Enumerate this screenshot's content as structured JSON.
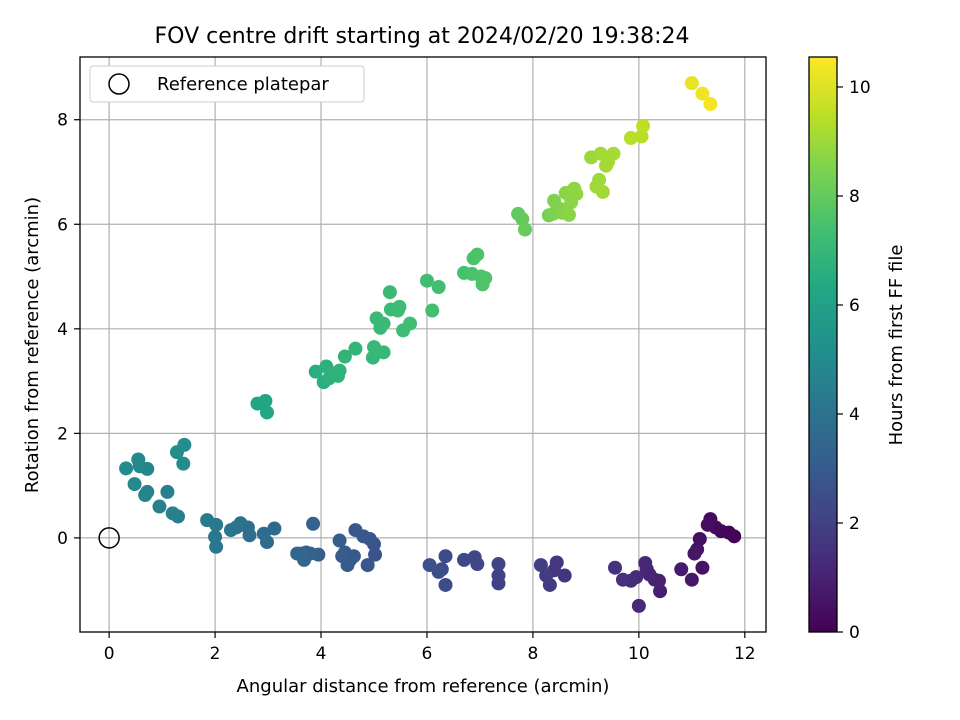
{
  "chart_data": {
    "type": "scatter",
    "title": "FOV centre drift starting at 2024/02/20 19:38:24",
    "xlabel": "Angular distance from reference (arcmin)",
    "ylabel": "Rotation from reference (arcmin)",
    "xlim": [
      -0.55,
      12.4
    ],
    "ylim": [
      -1.8,
      9.2
    ],
    "xticks": [
      0,
      2,
      4,
      6,
      8,
      10,
      12
    ],
    "yticks": [
      0,
      2,
      4,
      6,
      8
    ],
    "grid": true,
    "legend": {
      "placement": "top-left",
      "entries": [
        "Reference platepar"
      ]
    },
    "reference_point": {
      "x": 0,
      "y": 0
    },
    "colorbar": {
      "label": "Hours from first FF file",
      "colormap": "viridis",
      "range": [
        0,
        10.55
      ],
      "ticks": [
        0,
        2,
        4,
        6,
        8,
        10
      ]
    },
    "points": [
      {
        "x": 11.8,
        "y": 0.03,
        "t": 0.02
      },
      {
        "x": 11.7,
        "y": 0.1,
        "t": 0.08
      },
      {
        "x": 11.55,
        "y": 0.13,
        "t": 0.15
      },
      {
        "x": 11.45,
        "y": 0.2,
        "t": 0.22
      },
      {
        "x": 11.35,
        "y": 0.36,
        "t": 0.3
      },
      {
        "x": 11.3,
        "y": 0.25,
        "t": 0.38
      },
      {
        "x": 11.15,
        "y": -0.02,
        "t": 0.45
      },
      {
        "x": 11.1,
        "y": -0.22,
        "t": 0.55
      },
      {
        "x": 11.05,
        "y": -0.3,
        "t": 0.62
      },
      {
        "x": 11.0,
        "y": -0.8,
        "t": 0.7
      },
      {
        "x": 10.8,
        "y": -0.6,
        "t": 0.78
      },
      {
        "x": 11.2,
        "y": -0.57,
        "t": 0.5
      },
      {
        "x": 10.4,
        "y": -1.02,
        "t": 0.9
      },
      {
        "x": 10.38,
        "y": -0.82,
        "t": 0.96
      },
      {
        "x": 10.3,
        "y": -0.8,
        "t": 1.02
      },
      {
        "x": 10.2,
        "y": -0.7,
        "t": 1.08
      },
      {
        "x": 10.15,
        "y": -0.6,
        "t": 1.12
      },
      {
        "x": 10.12,
        "y": -0.48,
        "t": 1.18
      },
      {
        "x": 10.0,
        "y": -1.3,
        "t": 1.25
      },
      {
        "x": 9.95,
        "y": -0.75,
        "t": 1.3
      },
      {
        "x": 9.85,
        "y": -0.82,
        "t": 1.35
      },
      {
        "x": 9.7,
        "y": -0.8,
        "t": 1.42
      },
      {
        "x": 9.55,
        "y": -0.57,
        "t": 1.5
      },
      {
        "x": 8.6,
        "y": -0.72,
        "t": 1.6
      },
      {
        "x": 8.45,
        "y": -0.47,
        "t": 1.66
      },
      {
        "x": 8.4,
        "y": -0.62,
        "t": 1.72
      },
      {
        "x": 8.32,
        "y": -0.9,
        "t": 1.78
      },
      {
        "x": 8.25,
        "y": -0.72,
        "t": 1.84
      },
      {
        "x": 8.15,
        "y": -0.52,
        "t": 1.9
      },
      {
        "x": 7.35,
        "y": -0.87,
        "t": 2.0
      },
      {
        "x": 7.35,
        "y": -0.72,
        "t": 2.05
      },
      {
        "x": 7.35,
        "y": -0.5,
        "t": 2.1
      },
      {
        "x": 6.95,
        "y": -0.5,
        "t": 2.18
      },
      {
        "x": 6.9,
        "y": -0.37,
        "t": 2.24
      },
      {
        "x": 6.7,
        "y": -0.42,
        "t": 2.3
      },
      {
        "x": 6.35,
        "y": -0.9,
        "t": 2.38
      },
      {
        "x": 6.35,
        "y": -0.35,
        "t": 2.43
      },
      {
        "x": 6.28,
        "y": -0.6,
        "t": 2.48
      },
      {
        "x": 6.22,
        "y": -0.65,
        "t": 2.53
      },
      {
        "x": 6.05,
        "y": -0.52,
        "t": 2.58
      },
      {
        "x": 5.02,
        "y": -0.32,
        "t": 2.68
      },
      {
        "x": 5.0,
        "y": -0.12,
        "t": 2.72
      },
      {
        "x": 4.92,
        "y": -0.02,
        "t": 2.76
      },
      {
        "x": 4.88,
        "y": -0.52,
        "t": 2.8
      },
      {
        "x": 4.8,
        "y": 0.03,
        "t": 2.84
      },
      {
        "x": 4.65,
        "y": 0.15,
        "t": 2.88
      },
      {
        "x": 4.62,
        "y": -0.35,
        "t": 2.92
      },
      {
        "x": 4.55,
        "y": -0.42,
        "t": 2.96
      },
      {
        "x": 4.5,
        "y": -0.52,
        "t": 3.0
      },
      {
        "x": 4.45,
        "y": -0.28,
        "t": 3.04
      },
      {
        "x": 4.4,
        "y": -0.35,
        "t": 3.08
      },
      {
        "x": 4.35,
        "y": -0.05,
        "t": 3.12
      },
      {
        "x": 3.95,
        "y": -0.32,
        "t": 3.2
      },
      {
        "x": 3.85,
        "y": 0.27,
        "t": 3.25
      },
      {
        "x": 3.8,
        "y": -0.3,
        "t": 3.3
      },
      {
        "x": 3.72,
        "y": -0.28,
        "t": 3.35
      },
      {
        "x": 3.68,
        "y": -0.42,
        "t": 3.4
      },
      {
        "x": 3.62,
        "y": -0.3,
        "t": 3.45
      },
      {
        "x": 3.55,
        "y": -0.3,
        "t": 3.5
      },
      {
        "x": 3.12,
        "y": 0.18,
        "t": 3.6
      },
      {
        "x": 2.98,
        "y": -0.08,
        "t": 3.66
      },
      {
        "x": 2.92,
        "y": 0.08,
        "t": 3.72
      },
      {
        "x": 2.65,
        "y": 0.05,
        "t": 3.8
      },
      {
        "x": 2.62,
        "y": 0.2,
        "t": 3.86
      },
      {
        "x": 2.48,
        "y": 0.28,
        "t": 3.92
      },
      {
        "x": 2.4,
        "y": 0.2,
        "t": 3.98
      },
      {
        "x": 2.3,
        "y": 0.15,
        "t": 4.04
      },
      {
        "x": 2.02,
        "y": -0.17,
        "t": 4.12
      },
      {
        "x": 2.0,
        "y": 0.02,
        "t": 4.18
      },
      {
        "x": 2.02,
        "y": 0.25,
        "t": 4.24
      },
      {
        "x": 1.85,
        "y": 0.34,
        "t": 4.3
      },
      {
        "x": 1.3,
        "y": 0.41,
        "t": 4.45
      },
      {
        "x": 1.2,
        "y": 0.47,
        "t": 4.5
      },
      {
        "x": 1.1,
        "y": 0.88,
        "t": 4.56
      },
      {
        "x": 0.95,
        "y": 0.6,
        "t": 4.62
      },
      {
        "x": 0.72,
        "y": 0.88,
        "t": 4.7
      },
      {
        "x": 0.68,
        "y": 0.82,
        "t": 4.75
      },
      {
        "x": 0.72,
        "y": 1.32,
        "t": 4.8
      },
      {
        "x": 0.58,
        "y": 1.37,
        "t": 4.85
      },
      {
        "x": 0.55,
        "y": 1.5,
        "t": 4.9
      },
      {
        "x": 0.48,
        "y": 1.03,
        "t": 4.95
      },
      {
        "x": 0.32,
        "y": 1.33,
        "t": 5.0
      },
      {
        "x": 1.4,
        "y": 1.42,
        "t": 5.1
      },
      {
        "x": 1.42,
        "y": 1.78,
        "t": 5.2
      },
      {
        "x": 1.28,
        "y": 1.64,
        "t": 5.15
      },
      {
        "x": 2.8,
        "y": 2.57,
        "t": 6.15
      },
      {
        "x": 2.95,
        "y": 2.62,
        "t": 6.2
      },
      {
        "x": 2.98,
        "y": 2.4,
        "t": 6.25
      },
      {
        "x": 3.9,
        "y": 3.18,
        "t": 6.6
      },
      {
        "x": 4.05,
        "y": 2.98,
        "t": 6.65
      },
      {
        "x": 4.1,
        "y": 3.28,
        "t": 6.7
      },
      {
        "x": 4.15,
        "y": 3.05,
        "t": 6.72
      },
      {
        "x": 4.2,
        "y": 3.15,
        "t": 6.75
      },
      {
        "x": 4.35,
        "y": 3.2,
        "t": 6.78
      },
      {
        "x": 4.32,
        "y": 3.1,
        "t": 6.8
      },
      {
        "x": 4.45,
        "y": 3.47,
        "t": 6.85
      },
      {
        "x": 4.65,
        "y": 3.62,
        "t": 6.9
      },
      {
        "x": 4.98,
        "y": 3.45,
        "t": 6.95
      },
      {
        "x": 5.0,
        "y": 3.65,
        "t": 7.0
      },
      {
        "x": 5.18,
        "y": 3.55,
        "t": 7.02
      },
      {
        "x": 5.05,
        "y": 4.2,
        "t": 7.05
      },
      {
        "x": 5.12,
        "y": 4.02,
        "t": 7.08
      },
      {
        "x": 5.18,
        "y": 4.1,
        "t": 7.1
      },
      {
        "x": 5.3,
        "y": 4.7,
        "t": 7.12
      },
      {
        "x": 5.32,
        "y": 4.37,
        "t": 7.15
      },
      {
        "x": 5.45,
        "y": 4.35,
        "t": 7.18
      },
      {
        "x": 5.48,
        "y": 4.42,
        "t": 7.2
      },
      {
        "x": 5.55,
        "y": 3.97,
        "t": 7.22
      },
      {
        "x": 5.68,
        "y": 4.1,
        "t": 7.25
      },
      {
        "x": 6.0,
        "y": 4.92,
        "t": 7.3
      },
      {
        "x": 6.1,
        "y": 4.35,
        "t": 7.33
      },
      {
        "x": 6.22,
        "y": 4.8,
        "t": 7.36
      },
      {
        "x": 6.7,
        "y": 5.07,
        "t": 7.45
      },
      {
        "x": 6.85,
        "y": 5.05,
        "t": 7.5
      },
      {
        "x": 6.88,
        "y": 5.35,
        "t": 7.53
      },
      {
        "x": 6.95,
        "y": 5.42,
        "t": 7.55
      },
      {
        "x": 7.02,
        "y": 5.0,
        "t": 7.58
      },
      {
        "x": 7.05,
        "y": 4.85,
        "t": 7.6
      },
      {
        "x": 7.1,
        "y": 4.97,
        "t": 7.62
      },
      {
        "x": 7.72,
        "y": 6.2,
        "t": 7.95
      },
      {
        "x": 7.8,
        "y": 6.1,
        "t": 8.0
      },
      {
        "x": 7.85,
        "y": 5.9,
        "t": 8.05
      },
      {
        "x": 8.3,
        "y": 6.17,
        "t": 8.4
      },
      {
        "x": 8.38,
        "y": 6.2,
        "t": 8.45
      },
      {
        "x": 8.4,
        "y": 6.45,
        "t": 8.5
      },
      {
        "x": 8.5,
        "y": 6.3,
        "t": 8.55
      },
      {
        "x": 8.55,
        "y": 6.22,
        "t": 8.6
      },
      {
        "x": 8.62,
        "y": 6.6,
        "t": 8.65
      },
      {
        "x": 8.68,
        "y": 6.18,
        "t": 8.7
      },
      {
        "x": 8.72,
        "y": 6.42,
        "t": 8.72
      },
      {
        "x": 8.78,
        "y": 6.68,
        "t": 8.75
      },
      {
        "x": 8.82,
        "y": 6.58,
        "t": 8.78
      },
      {
        "x": 9.1,
        "y": 7.28,
        "t": 8.95
      },
      {
        "x": 9.2,
        "y": 6.72,
        "t": 9.0
      },
      {
        "x": 9.25,
        "y": 6.85,
        "t": 9.02
      },
      {
        "x": 9.28,
        "y": 7.35,
        "t": 9.05
      },
      {
        "x": 9.32,
        "y": 6.62,
        "t": 9.08
      },
      {
        "x": 9.38,
        "y": 7.12,
        "t": 9.1
      },
      {
        "x": 9.42,
        "y": 7.2,
        "t": 9.12
      },
      {
        "x": 9.52,
        "y": 7.35,
        "t": 9.15
      },
      {
        "x": 9.85,
        "y": 7.65,
        "t": 9.4
      },
      {
        "x": 10.05,
        "y": 7.68,
        "t": 9.45
      },
      {
        "x": 10.08,
        "y": 7.88,
        "t": 9.5
      },
      {
        "x": 11.0,
        "y": 8.7,
        "t": 10.2
      },
      {
        "x": 11.2,
        "y": 8.5,
        "t": 10.3
      },
      {
        "x": 11.35,
        "y": 8.3,
        "t": 10.4
      }
    ]
  }
}
